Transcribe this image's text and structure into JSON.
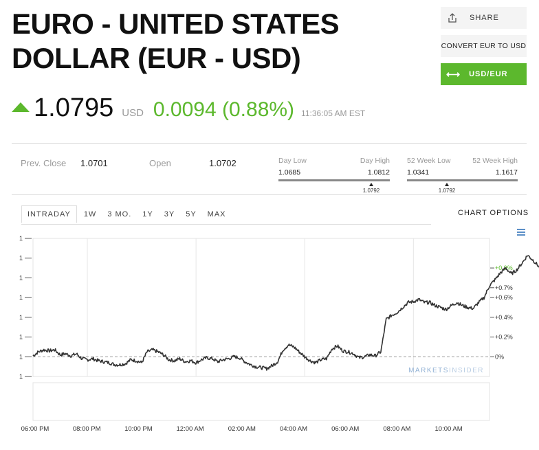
{
  "header": {
    "title_line1": "EURO - UNITED STATES",
    "title_line2": "DOLLAR (EUR - USD)"
  },
  "quote": {
    "direction_icon": "triangle-up-icon",
    "price": "1.0795",
    "currency": "USD",
    "change": "0.0094 (0.88%)",
    "time": "11:36:05 AM EST",
    "up_color": "#5cb82d"
  },
  "actions": {
    "share_icon": "share-icon",
    "share_label": "SHARE",
    "convert_label": "CONVERT EUR TO USD",
    "swap_icon": "swap-arrows-icon",
    "usd_eur_label": "USD/EUR"
  },
  "stats": {
    "prev_close_label": "Prev. Close",
    "prev_close_value": "1.0701",
    "open_label": "Open",
    "open_value": "1.0702",
    "day_low_label": "Day Low",
    "day_low_value": "1.0685",
    "day_high_label": "Day High",
    "day_high_value": "1.0812",
    "day_marker_value": "1.0792",
    "week52_low_label": "52 Week Low",
    "week52_low_value": "1.0341",
    "week52_high_label": "52 Week High",
    "week52_high_value": "1.1617",
    "week52_marker_value": "1.0792"
  },
  "tabs": [
    {
      "label": "INTRADAY",
      "active": true
    },
    {
      "label": "1W",
      "active": false
    },
    {
      "label": "3 MO.",
      "active": false
    },
    {
      "label": "1Y",
      "active": false
    },
    {
      "label": "3Y",
      "active": false
    },
    {
      "label": "5Y",
      "active": false
    },
    {
      "label": "MAX",
      "active": false
    }
  ],
  "chart_options_label": "CHART OPTIONS",
  "menu_icon": "hamburger-menu-icon",
  "watermark": {
    "part1": "MARKETS",
    "part2": "INSIDER"
  },
  "chart_data": {
    "type": "line",
    "left_tick_labels": [
      "1",
      "1",
      "1",
      "1",
      "1",
      "1",
      "1",
      "1"
    ],
    "right_tick_labels": [
      "+0.9%",
      "+0.7%",
      "+0.6%",
      "+0.4%",
      "+0.2%",
      "0%"
    ],
    "right_ticks_pct": [
      0.9,
      0.7,
      0.6,
      0.4,
      0.2,
      0
    ],
    "x_labels": [
      "06:00 PM",
      "08:00 PM",
      "10:00 PM",
      "12:00 AM",
      "02:00 AM",
      "04:00 AM",
      "06:00 AM",
      "08:00 AM",
      "10:00 AM"
    ],
    "baseline_pct": 0,
    "ylim_pct": [
      -0.2,
      1.2
    ],
    "highlight_color": "#5cb82d",
    "series": [
      {
        "points": [
          [
            0,
            0.01
          ],
          [
            0.1,
            0.05
          ],
          [
            0.2,
            0.07
          ],
          [
            0.3,
            0.06
          ],
          [
            0.4,
            0.07
          ],
          [
            0.5,
            0.02
          ],
          [
            0.6,
            0.03
          ],
          [
            0.7,
            0.01
          ],
          [
            0.8,
            0.03
          ],
          [
            0.9,
            -0.02
          ],
          [
            1.0,
            -0.03
          ],
          [
            1.1,
            -0.02
          ],
          [
            1.2,
            -0.04
          ],
          [
            1.3,
            -0.05
          ],
          [
            1.4,
            -0.06
          ],
          [
            1.5,
            -0.08
          ],
          [
            1.6,
            -0.08
          ],
          [
            1.7,
            -0.07
          ],
          [
            1.8,
            -0.03
          ],
          [
            1.9,
            -0.04
          ],
          [
            2.0,
            -0.06
          ],
          [
            2.1,
            0.05
          ],
          [
            2.2,
            0.07
          ],
          [
            2.3,
            0.05
          ],
          [
            2.4,
            0.02
          ],
          [
            2.5,
            -0.03
          ],
          [
            2.6,
            -0.04
          ],
          [
            2.7,
            -0.02
          ],
          [
            2.8,
            -0.05
          ],
          [
            2.9,
            -0.04
          ],
          [
            3.0,
            -0.06
          ],
          [
            3.1,
            -0.03
          ],
          [
            3.2,
            -0.01
          ],
          [
            3.3,
            -0.02
          ],
          [
            3.4,
            -0.05
          ],
          [
            3.5,
            -0.03
          ],
          [
            3.6,
            -0.02
          ],
          [
            3.7,
            0.0
          ],
          [
            3.8,
            -0.01
          ],
          [
            3.9,
            -0.05
          ],
          [
            4.0,
            -0.08
          ],
          [
            4.1,
            -0.1
          ],
          [
            4.2,
            -0.11
          ],
          [
            4.3,
            -0.12
          ],
          [
            4.4,
            -0.09
          ],
          [
            4.5,
            -0.05
          ],
          [
            4.6,
            0.07
          ],
          [
            4.7,
            0.12
          ],
          [
            4.8,
            0.1
          ],
          [
            4.9,
            0.05
          ],
          [
            5.0,
            0.0
          ],
          [
            5.1,
            -0.04
          ],
          [
            5.2,
            -0.06
          ],
          [
            5.3,
            -0.03
          ],
          [
            5.4,
            -0.02
          ],
          [
            5.5,
            0.08
          ],
          [
            5.6,
            0.11
          ],
          [
            5.7,
            0.06
          ],
          [
            5.8,
            0.05
          ],
          [
            5.9,
            0.03
          ],
          [
            6.0,
            -0.01
          ],
          [
            6.1,
            0.0
          ],
          [
            6.2,
            0.02
          ],
          [
            6.3,
            0.01
          ],
          [
            6.4,
            0.05
          ],
          [
            6.5,
            0.38
          ],
          [
            6.6,
            0.42
          ],
          [
            6.7,
            0.45
          ],
          [
            6.8,
            0.5
          ],
          [
            6.9,
            0.55
          ],
          [
            7.0,
            0.56
          ],
          [
            7.1,
            0.58
          ],
          [
            7.2,
            0.55
          ],
          [
            7.3,
            0.55
          ],
          [
            7.4,
            0.52
          ],
          [
            7.5,
            0.5
          ],
          [
            7.6,
            0.48
          ],
          [
            7.7,
            0.52
          ],
          [
            7.8,
            0.55
          ],
          [
            7.9,
            0.52
          ],
          [
            8.0,
            0.5
          ],
          [
            8.1,
            0.49
          ],
          [
            8.2,
            0.55
          ],
          [
            8.3,
            0.6
          ],
          [
            8.4,
            0.72
          ],
          [
            8.5,
            0.78
          ],
          [
            8.6,
            0.85
          ],
          [
            8.7,
            0.9
          ],
          [
            8.8,
            0.84
          ],
          [
            8.9,
            0.88
          ],
          [
            9.0,
            0.95
          ],
          [
            9.1,
            1.03
          ],
          [
            9.2,
            0.98
          ],
          [
            9.3,
            0.92
          ],
          [
            9.4,
            0.82
          ],
          [
            9.5,
            0.84
          ]
        ]
      }
    ]
  }
}
